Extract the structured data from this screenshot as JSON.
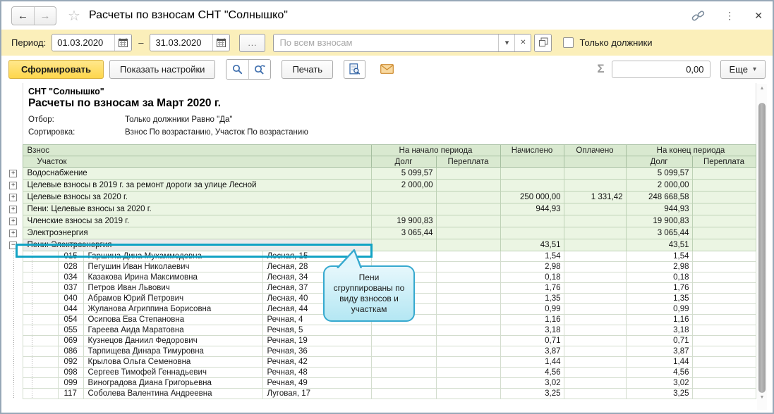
{
  "window": {
    "title": "Расчеты по взносам СНТ \"Солнышко\""
  },
  "icons": {
    "back": "←",
    "forward": "→",
    "star": "☆",
    "kebab": "⋮",
    "close": "✕",
    "dots": "...",
    "dropdown": "▾",
    "clear": "✕",
    "dash": "–",
    "sigma": "Σ",
    "more_arrow": "▾",
    "scroll_up": "▲",
    "scroll_down": "▼"
  },
  "filter_bar": {
    "period_label": "Период:",
    "date_from": "01.03.2020",
    "date_to": "31.03.2020",
    "search_placeholder": "По всем взносам",
    "debtors_label": "Только должники"
  },
  "toolbar": {
    "generate": "Сформировать",
    "show_settings": "Показать настройки",
    "print": "Печать",
    "sum_value": "0,00",
    "more": "Еще"
  },
  "report": {
    "org": "СНТ \"Солнышко\"",
    "title": "Расчеты по взносам за Март 2020 г.",
    "filter_label": "Отбор:",
    "filter_value": "Только должники Равно \"Да\"",
    "sort_label": "Сортировка:",
    "sort_value": "Взнос По возрастанию, Участок По возрастанию"
  },
  "table": {
    "header": {
      "contribution": "Взнос",
      "plot": "Участок",
      "period_start": "На начало периода",
      "accrued": "Начислено",
      "paid": "Оплачено",
      "period_end": "На конец периода",
      "debt": "Долг",
      "overpay": "Переплата"
    },
    "groups": [
      {
        "exp": "+",
        "name": "Водоснабжение",
        "beg_debt": "5 099,57",
        "beg_over": "",
        "accrued": "",
        "paid": "",
        "end_debt": "5 099,57",
        "end_over": "",
        "selected": false
      },
      {
        "exp": "+",
        "name": "Целевые взносы в 2019 г. за ремонт дороги за улице Лесной",
        "beg_debt": "2 000,00",
        "beg_over": "",
        "accrued": "",
        "paid": "",
        "end_debt": "2 000,00",
        "end_over": "",
        "selected": false
      },
      {
        "exp": "+",
        "name": "Целевые взносы за 2020 г.",
        "beg_debt": "",
        "beg_over": "",
        "accrued": "250 000,00",
        "paid": "1 331,42",
        "end_debt": "248 668,58",
        "end_over": "",
        "selected": false
      },
      {
        "exp": "+",
        "name": "Пени: Целевые взносы за 2020 г.",
        "beg_debt": "",
        "beg_over": "",
        "accrued": "944,93",
        "paid": "",
        "end_debt": "944,93",
        "end_over": "",
        "selected": false
      },
      {
        "exp": "+",
        "name": "Членские взносы за 2019 г.",
        "beg_debt": "19 900,83",
        "beg_over": "",
        "accrued": "",
        "paid": "",
        "end_debt": "19 900,83",
        "end_over": "",
        "selected": false
      },
      {
        "exp": "+",
        "name": "Электроэнергия",
        "beg_debt": "3 065,44",
        "beg_over": "",
        "accrued": "",
        "paid": "",
        "end_debt": "3 065,44",
        "end_over": "",
        "selected": false
      },
      {
        "exp": "−",
        "name": "Пени: Электроэнергия",
        "beg_debt": "",
        "beg_over": "",
        "accrued": "43,51",
        "paid": "",
        "end_debt": "43,51",
        "end_over": "",
        "selected": true
      }
    ],
    "details": [
      {
        "num": "015",
        "name": "Гаршина Дина Мухаммедовна",
        "address": "Лесная, 15",
        "accrued": "1,54",
        "end_debt": "1,54"
      },
      {
        "num": "028",
        "name": "Пегушин Иван Николаевич",
        "address": "Лесная, 28",
        "accrued": "2,98",
        "end_debt": "2,98"
      },
      {
        "num": "034",
        "name": "Казакова Ирина Максимовна",
        "address": "Лесная, 34",
        "accrued": "0,18",
        "end_debt": "0,18"
      },
      {
        "num": "037",
        "name": "Петров Иван Львович",
        "address": "Лесная, 37",
        "accrued": "1,76",
        "end_debt": "1,76"
      },
      {
        "num": "040",
        "name": "Абрамов Юрий Петрович",
        "address": "Лесная, 40",
        "accrued": "1,35",
        "end_debt": "1,35"
      },
      {
        "num": "044",
        "name": "Жуланова Агриппина Борисовна",
        "address": "Лесная, 44",
        "accrued": "0,99",
        "end_debt": "0,99"
      },
      {
        "num": "054",
        "name": "Осипова Ева Степановна",
        "address": "Речная, 4",
        "accrued": "1,16",
        "end_debt": "1,16"
      },
      {
        "num": "055",
        "name": "Гареева Аида Маратовна",
        "address": "Речная, 5",
        "accrued": "3,18",
        "end_debt": "3,18"
      },
      {
        "num": "069",
        "name": "Кузнецов Даниил Федорович",
        "address": "Речная, 19",
        "accrued": "0,71",
        "end_debt": "0,71"
      },
      {
        "num": "086",
        "name": "Тарпищева Динара Тимуровна",
        "address": "Речная, 36",
        "accrued": "3,87",
        "end_debt": "3,87"
      },
      {
        "num": "092",
        "name": "Крылова Ольга Семеновна",
        "address": "Речная, 42",
        "accrued": "1,44",
        "end_debt": "1,44"
      },
      {
        "num": "098",
        "name": "Сергеев Тимофей Геннадьевич",
        "address": "Речная, 48",
        "accrued": "4,56",
        "end_debt": "4,56"
      },
      {
        "num": "099",
        "name": "Виноградова Диана Григорьевна",
        "address": "Речная, 49",
        "accrued": "3,02",
        "end_debt": "3,02"
      },
      {
        "num": "117",
        "name": "Соболева Валентина Андреевна",
        "address": "Луговая, 17",
        "accrued": "3,25",
        "end_debt": "3,25"
      }
    ]
  },
  "callout": {
    "text": "Пени сгруппированы по виду взносов и участкам"
  }
}
